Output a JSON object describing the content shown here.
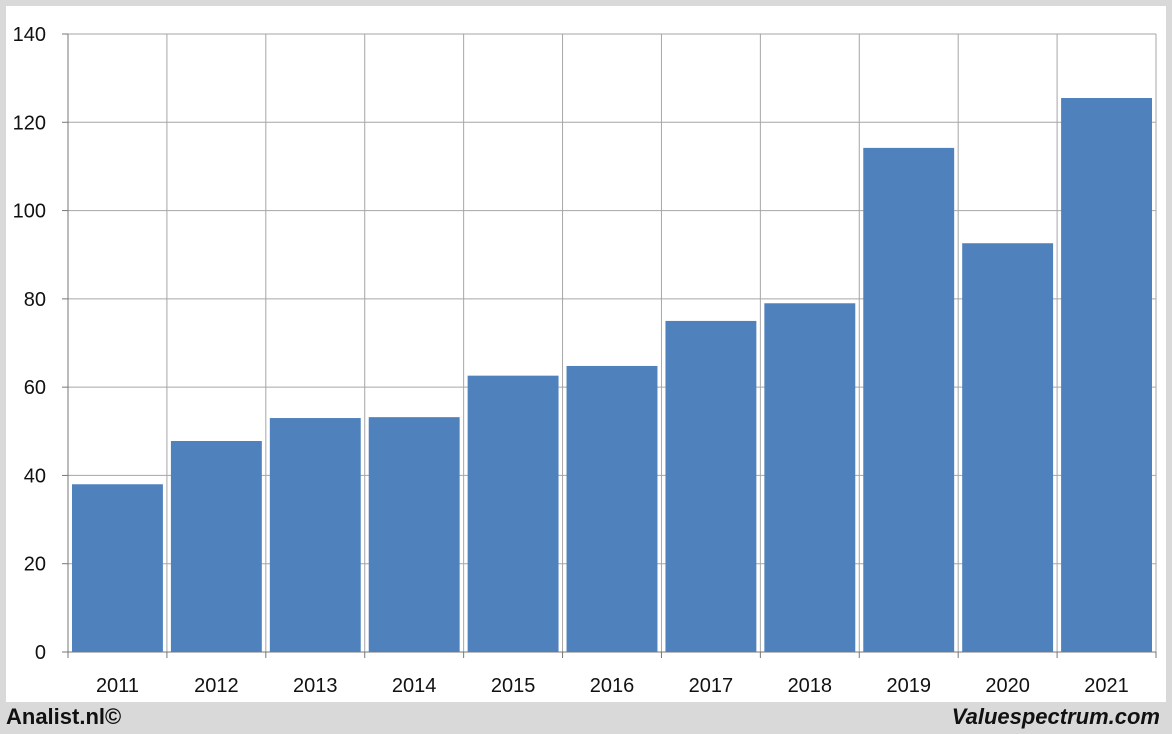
{
  "footer": {
    "left_text": "Analist.nl©",
    "right_text": "Valuespectrum.com"
  },
  "chart_data": {
    "type": "bar",
    "title": "",
    "xlabel": "",
    "ylabel": "",
    "categories": [
      "2011",
      "2012",
      "2013",
      "2014",
      "2015",
      "2016",
      "2017",
      "2018",
      "2019",
      "2020",
      "2021"
    ],
    "values": [
      38,
      47.8,
      53,
      53.2,
      62.6,
      64.8,
      75,
      79,
      114.2,
      92.6,
      125.5
    ],
    "ylim": [
      0,
      140
    ],
    "yticks": [
      0,
      20,
      40,
      60,
      80,
      100,
      120,
      140
    ],
    "grid": true,
    "bar_color": "#4f81bd",
    "grid_color": "#a6a6a6"
  }
}
